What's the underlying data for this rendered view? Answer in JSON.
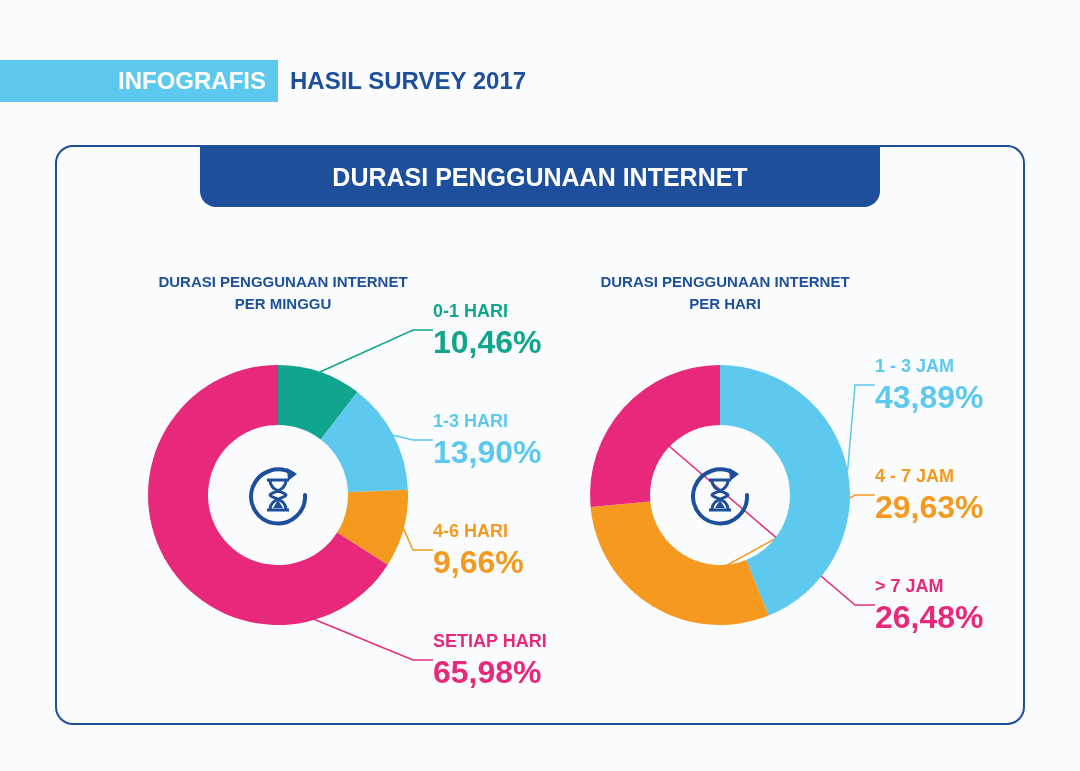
{
  "chart_data": [
    {
      "type": "other",
      "title": "DURASI PENGGUNAAN INTERNET",
      "annotations": [
        "INFOGRAFIS",
        "HASIL SURVEY 2017"
      ]
    },
    {
      "type": "donut",
      "title": "DURASI PENGGUNAAN INTERNET\nPER MINGGU",
      "categories": [
        "0-1 HARI",
        "1-3 HARI",
        "4-6 HARI",
        "SETIAP HARI"
      ],
      "values": [
        10.46,
        13.9,
        9.66,
        65.98
      ],
      "value_labels": [
        "10,46%",
        "13,90%",
        "9,66%",
        "65,98%"
      ],
      "colors": [
        "#12a58e",
        "#5ec9ee",
        "#f5991f",
        "#e8297b"
      ],
      "legend": false
    },
    {
      "type": "donut",
      "title": "DURASI PENGGUNAAN INTERNET\nPER HARI",
      "categories": [
        "1 - 3 JAM",
        "4 - 7 JAM",
        "> 7 JAM"
      ],
      "values": [
        43.89,
        29.63,
        26.48
      ],
      "value_labels": [
        "43,89%",
        "29,63%",
        "26,48%"
      ],
      "colors": [
        "#5ec9ee",
        "#f5991f",
        "#e8297b"
      ],
      "legend": false
    }
  ]
}
